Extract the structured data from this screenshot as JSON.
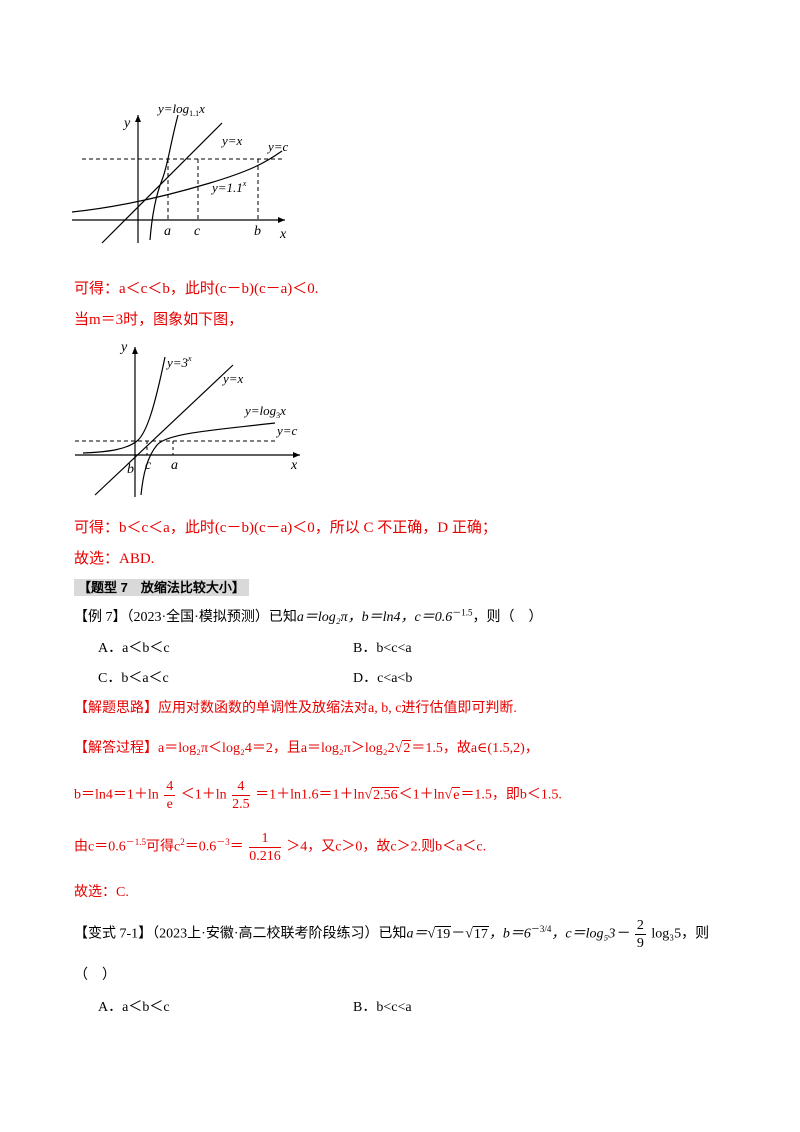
{
  "graph1": {
    "y_axis": "y",
    "x_axis": "x",
    "label_log": "y=log",
    "label_log_base": "1.1",
    "label_log_var": "x",
    "label_yx": "y=x",
    "label_yc": "y=c",
    "label_exp": "y=1.1",
    "label_exp_sup": "x",
    "tick_a": "a",
    "tick_c": "c",
    "tick_b": "b"
  },
  "line1": "可得：a＜c＜b，此时(c－b)(c－a)＜0.",
  "line2": "当m＝3时，图象如下图，",
  "graph2": {
    "y_axis": "y",
    "x_axis": "x",
    "label_exp": "y=3",
    "label_exp_sup": "x",
    "label_yx": "y=x",
    "label_log": "y=log",
    "label_log_base": "3",
    "label_log_var": "x",
    "label_yc": "y=c",
    "tick_b": "b",
    "tick_c": "c",
    "tick_a": "a"
  },
  "line3": "可得：b＜c＜a，此时(c－b)(c－a)＜0，所以 C 不正确，D 正确；",
  "line4": "故选：ABD.",
  "heading7": "【题型 7　放缩法比较大小】",
  "example7": {
    "prefix": "【例 7】（2023·全国·模拟预测）已知",
    "expr": "a＝log₂π，b＝ln4，c＝0.6",
    "sup": "－1.5",
    "suffix": "，则（　）",
    "optA": "A．a＜b＜c",
    "optB": "B．b<c<a",
    "optC": "C．b＜a＜c",
    "optD": "D．c<a<b"
  },
  "idea": "【解题思路】应用对数函数的单调性及放缩法对a, b, c进行估值即可判断.",
  "proc1": {
    "head": "【解答过程】",
    "body": "a＝log₂π＜log₂4＝2，且a＝log₂π＞log₂2",
    "sqrt": "2",
    "tail": "＝1.5，故a∈(1.5,2)，"
  },
  "proc2": {
    "part1": "b＝ln4＝1＋ln",
    "frac1_num": "4",
    "frac1_den": "e",
    "part2": "＜1＋ln",
    "frac2_num": "4",
    "frac2_den": "2.5",
    "part3": "＝1＋ln1.6＝1＋ln",
    "sqrt1": "2.56",
    "part4": "＜1＋ln",
    "sqrt2": "e",
    "part5": "＝1.5，即b＜1.5."
  },
  "proc3": {
    "part1": "由c＝0.6",
    "sup1": "－1.5",
    "part2": "可得c",
    "sup2": "2",
    "part3": "＝0.6",
    "sup3": "－3",
    "part4": "＝",
    "frac_num": "1",
    "frac_den": "0.216",
    "part5": "＞4，又c＞0，故c＞2.则b＜a＜c."
  },
  "line5": "故选：C.",
  "variant": {
    "prefix": "【变式 7-1】（2023上·安徽·高二校联考阶段练习）已知",
    "a_part": "a＝",
    "sqrt1": "19",
    "minus": "－",
    "sqrt2": "17",
    "b_part": "，b＝6",
    "b_sup": "－3/4",
    "c_part": "，c＝log₅3－",
    "frac_num": "2",
    "frac_den": "9",
    "c_tail": "log₃5，则",
    "paren": "（　）",
    "optA": "A．a＜b＜c",
    "optB": "B．b<c<a"
  }
}
